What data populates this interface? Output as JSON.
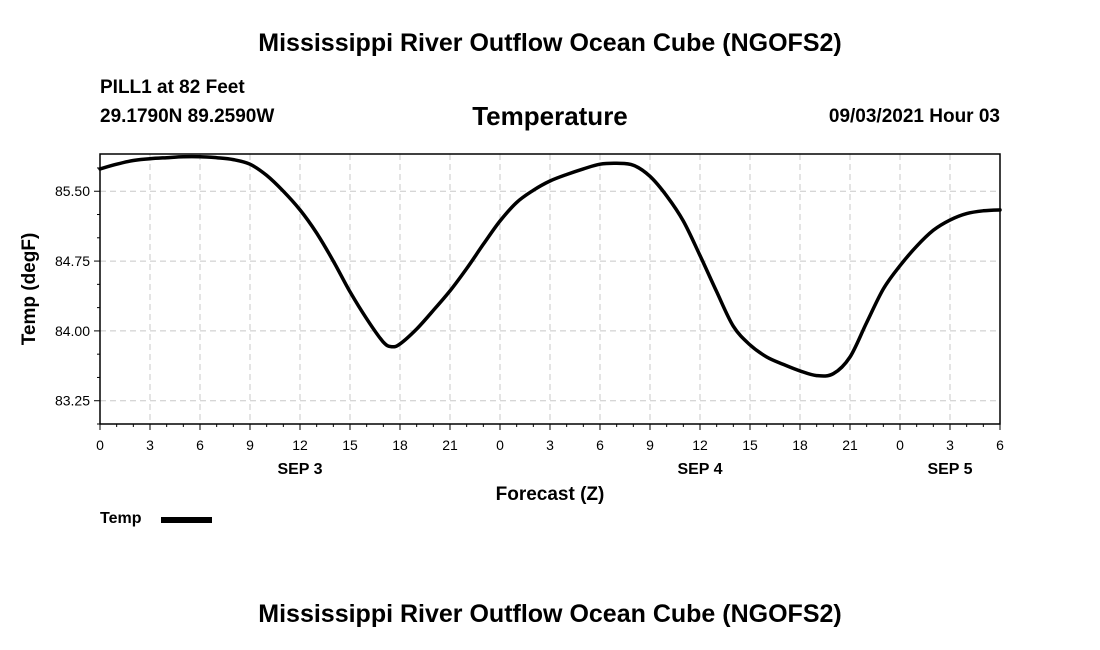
{
  "header": {
    "title": "Mississippi River Outflow Ocean Cube (NGOFS2)",
    "station": "PILL1 at 82 Feet",
    "coords": "29.1790N  89.2590W",
    "variable": "Temperature",
    "datetime": "09/03/2021 Hour 03"
  },
  "footer": {
    "title": "Mississippi River Outflow Ocean Cube (NGOFS2)"
  },
  "legend": {
    "label": "Temp"
  },
  "chart_data": {
    "type": "line",
    "title": "Temperature",
    "xlabel": "Forecast (Z)",
    "ylabel": "Temp (degF)",
    "xlim": [
      0,
      54
    ],
    "ylim": [
      83.0,
      85.9
    ],
    "yticks": [
      83.25,
      84.0,
      84.75,
      85.5
    ],
    "ytick_labels": [
      "83.25",
      "84.00",
      "84.75",
      "85.50"
    ],
    "xticks": [
      0,
      3,
      6,
      9,
      12,
      15,
      18,
      21,
      24,
      27,
      30,
      33,
      36,
      39,
      42,
      45,
      48,
      51,
      54
    ],
    "xtick_labels": [
      "0",
      "3",
      "6",
      "9",
      "12",
      "15",
      "18",
      "21",
      "0",
      "3",
      "6",
      "9",
      "12",
      "15",
      "18",
      "21",
      "0",
      "3",
      "6"
    ],
    "date_labels": [
      {
        "x": 12,
        "label": "SEP 3"
      },
      {
        "x": 36,
        "label": "SEP 4"
      },
      {
        "x": 51,
        "label": "SEP 5"
      }
    ],
    "grid": true,
    "series": [
      {
        "name": "Temp",
        "x": [
          0,
          1,
          2,
          3,
          4,
          5,
          6,
          7,
          8,
          9,
          10,
          11,
          12,
          13,
          14,
          15,
          16,
          17,
          17.5,
          18,
          19,
          20,
          21,
          22,
          23,
          24,
          25,
          26,
          27,
          28,
          29,
          30,
          31,
          32,
          33,
          34,
          35,
          36,
          37,
          38,
          39,
          40,
          41,
          42,
          43,
          44,
          45,
          46,
          47,
          48,
          49,
          50,
          51,
          52,
          53,
          54
        ],
        "values": [
          85.74,
          85.79,
          85.83,
          85.85,
          85.86,
          85.87,
          85.87,
          85.86,
          85.84,
          85.79,
          85.67,
          85.5,
          85.3,
          85.05,
          84.75,
          84.42,
          84.13,
          83.88,
          83.83,
          83.86,
          84.02,
          84.22,
          84.43,
          84.67,
          84.93,
          85.18,
          85.38,
          85.51,
          85.61,
          85.68,
          85.74,
          85.79,
          85.8,
          85.78,
          85.66,
          85.45,
          85.18,
          84.81,
          84.42,
          84.05,
          83.85,
          83.72,
          83.64,
          83.57,
          83.52,
          83.54,
          83.72,
          84.09,
          84.45,
          84.7,
          84.91,
          85.08,
          85.19,
          85.26,
          85.29,
          85.3
        ]
      }
    ]
  }
}
